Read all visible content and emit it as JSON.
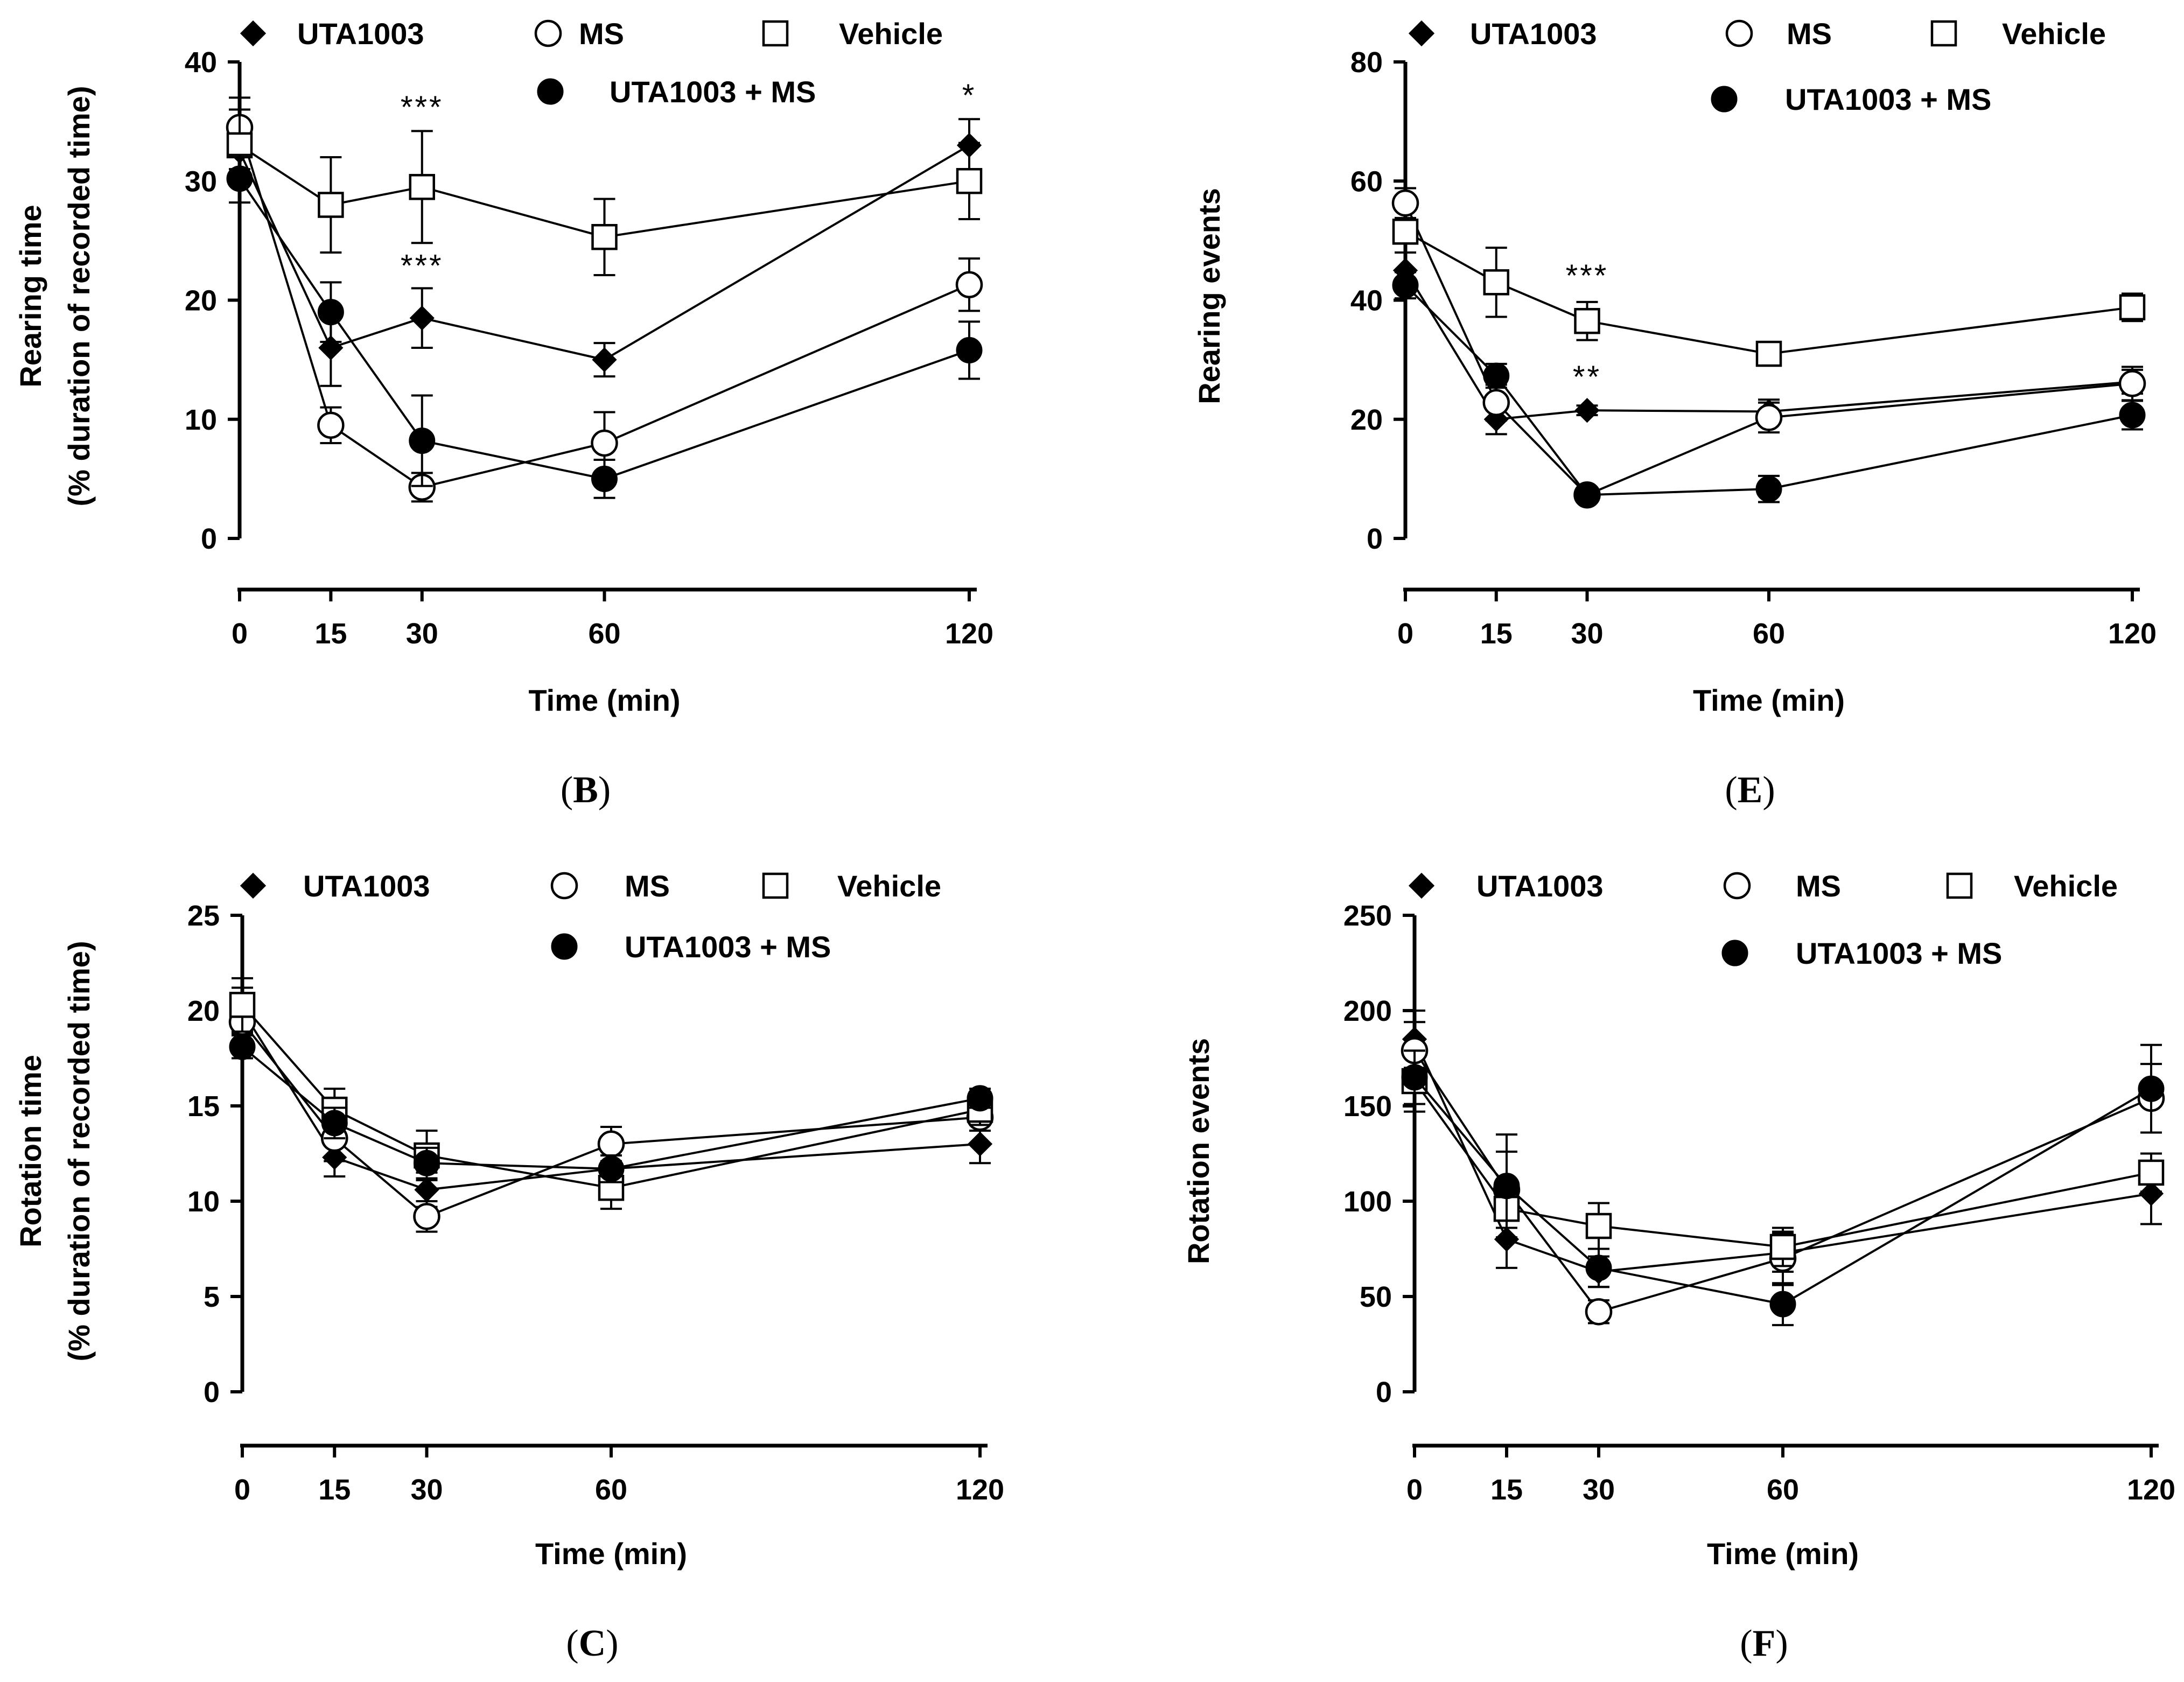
{
  "chart_data": [
    {
      "type": "line",
      "panel_label": "B",
      "xlabel": "Time (min)",
      "ylabel_line1": "Rearing time",
      "ylabel_line2": "(% duration of recorded time)",
      "x": [
        0,
        15,
        30,
        60,
        120
      ],
      "xticks": [
        "0",
        "15",
        "30",
        "60",
        "120"
      ],
      "ylim": [
        0,
        40
      ],
      "yticks": [
        "0",
        "10",
        "20",
        "30",
        "40"
      ],
      "legend": [
        "UTA1003",
        "MS",
        "Vehicle",
        "UTA1003 + MS"
      ],
      "series": [
        {
          "name": "UTA1003",
          "marker": "diamond",
          "values": [
            32.5,
            16.0,
            18.5,
            15.0,
            33.0
          ],
          "errors": [
            1.5,
            3.2,
            2.5,
            1.4,
            2.2
          ]
        },
        {
          "name": "MS",
          "marker": "open-circle",
          "values": [
            34.5,
            9.5,
            4.3,
            8.0,
            21.3
          ],
          "errors": [
            2.5,
            1.5,
            1.2,
            2.6,
            2.2
          ]
        },
        {
          "name": "Vehicle",
          "marker": "open-square",
          "values": [
            33.0,
            28.0,
            29.5,
            25.3,
            30.0
          ],
          "errors": [
            3.0,
            4.0,
            4.7,
            3.2,
            3.2
          ]
        },
        {
          "name": "UTA1003 + MS",
          "marker": "filled-circle",
          "values": [
            30.2,
            19.0,
            8.2,
            5.0,
            15.8
          ],
          "errors": [
            2.0,
            2.5,
            3.8,
            1.6,
            2.4
          ]
        }
      ],
      "annotations": [
        {
          "text": "***",
          "x": 30,
          "y": 35.3
        },
        {
          "text": "***",
          "x": 30,
          "y": 22.0
        },
        {
          "text": "*",
          "x": 120,
          "y": 36.3
        }
      ]
    },
    {
      "type": "line",
      "panel_label": "E",
      "xlabel": "Time (min)",
      "ylabel_line1": "Rearing events",
      "ylabel_line2": "",
      "x": [
        0,
        15,
        30,
        60,
        120
      ],
      "xticks": [
        "0",
        "15",
        "30",
        "60",
        "120"
      ],
      "ylim": [
        0,
        80
      ],
      "yticks": [
        "0",
        "20",
        "40",
        "60",
        "80"
      ],
      "legend": [
        "UTA1003",
        "MS",
        "Vehicle",
        "UTA1003 + MS"
      ],
      "series": [
        {
          "name": "UTA1003",
          "marker": "diamond",
          "values": [
            45.0,
            20.0,
            21.5,
            21.3,
            26.3
          ],
          "errors": [
            3.0,
            2.5,
            0.8,
            2.0,
            2.0
          ]
        },
        {
          "name": "MS",
          "marker": "open-circle",
          "values": [
            56.3,
            22.8,
            7.3,
            20.3,
            26.0
          ],
          "errors": [
            2.5,
            3.0,
            1.0,
            2.5,
            2.8
          ]
        },
        {
          "name": "Vehicle",
          "marker": "open-square",
          "values": [
            51.5,
            43.0,
            36.5,
            31.0,
            38.8
          ],
          "errors": [
            2.0,
            5.8,
            3.2,
            1.5,
            2.3
          ]
        },
        {
          "name": "UTA1003 + MS",
          "marker": "filled-circle",
          "values": [
            42.5,
            27.3,
            7.3,
            8.3,
            20.7
          ],
          "errors": [
            2.2,
            2.0,
            1.0,
            2.2,
            2.4
          ]
        }
      ],
      "annotations": [
        {
          "text": "***",
          "x": 30,
          "y": 42.3
        },
        {
          "text": "**",
          "x": 30,
          "y": 25.3
        }
      ]
    },
    {
      "type": "line",
      "panel_label": "C",
      "xlabel": "Time (min)",
      "ylabel_line1": "Rotation time",
      "ylabel_line2": "(% duration of recorded time)",
      "x": [
        0,
        15,
        30,
        60,
        120
      ],
      "xticks": [
        "0",
        "15",
        "30",
        "60",
        "120"
      ],
      "ylim": [
        0,
        25
      ],
      "yticks": [
        "0",
        "5",
        "10",
        "15",
        "20",
        "25"
      ],
      "legend": [
        "UTA1003",
        "MS",
        "Vehicle",
        "UTA1003 + MS"
      ],
      "series": [
        {
          "name": "UTA1003",
          "marker": "diamond",
          "values": [
            20.0,
            12.3,
            10.6,
            11.7,
            13.0
          ],
          "errors": [
            1.2,
            1.0,
            0.9,
            0.7,
            1.0
          ]
        },
        {
          "name": "MS",
          "marker": "open-circle",
          "values": [
            19.4,
            13.3,
            9.2,
            13.0,
            14.4
          ],
          "errors": [
            1.0,
            1.2,
            0.8,
            0.9,
            0.7
          ]
        },
        {
          "name": "Vehicle",
          "marker": "open-square",
          "values": [
            20.3,
            14.8,
            12.4,
            10.7,
            14.8
          ],
          "errors": [
            1.4,
            1.1,
            1.3,
            1.1,
            0.8
          ]
        },
        {
          "name": "UTA1003 + MS",
          "marker": "filled-circle",
          "values": [
            18.1,
            14.1,
            12.0,
            11.7,
            15.4
          ],
          "errors": [
            0.6,
            0.8,
            0.8,
            0.7,
            0.5
          ]
        }
      ],
      "annotations": []
    },
    {
      "type": "line",
      "panel_label": "F",
      "xlabel": "Time (min)",
      "ylabel_line1": "Rotation events",
      "ylabel_line2": "",
      "x": [
        0,
        15,
        30,
        60,
        120
      ],
      "xticks": [
        "0",
        "15",
        "30",
        "60",
        "120"
      ],
      "ylim": [
        0,
        250
      ],
      "yticks": [
        "0",
        "50",
        "100",
        "150",
        "200",
        "250"
      ],
      "legend": [
        "UTA1003",
        "MS",
        "Vehicle",
        "UTA1003 + MS"
      ],
      "series": [
        {
          "name": "UTA1003",
          "marker": "diamond",
          "values": [
            185,
            80,
            63,
            73,
            104
          ],
          "errors": [
            15,
            15,
            8,
            10,
            16
          ]
        },
        {
          "name": "MS",
          "marker": "open-circle",
          "values": [
            179,
            106,
            42,
            70,
            154
          ],
          "errors": [
            15,
            20,
            6,
            14,
            18
          ]
        },
        {
          "name": "Vehicle",
          "marker": "open-square",
          "values": [
            163,
            96,
            87,
            76,
            115
          ],
          "errors": [
            16,
            15,
            12,
            10,
            10
          ]
        },
        {
          "name": "UTA1003 + MS",
          "marker": "filled-circle",
          "values": [
            165,
            108,
            65,
            46,
            159
          ],
          "errors": [
            14,
            27,
            10,
            11,
            23
          ]
        }
      ],
      "annotations": []
    }
  ]
}
